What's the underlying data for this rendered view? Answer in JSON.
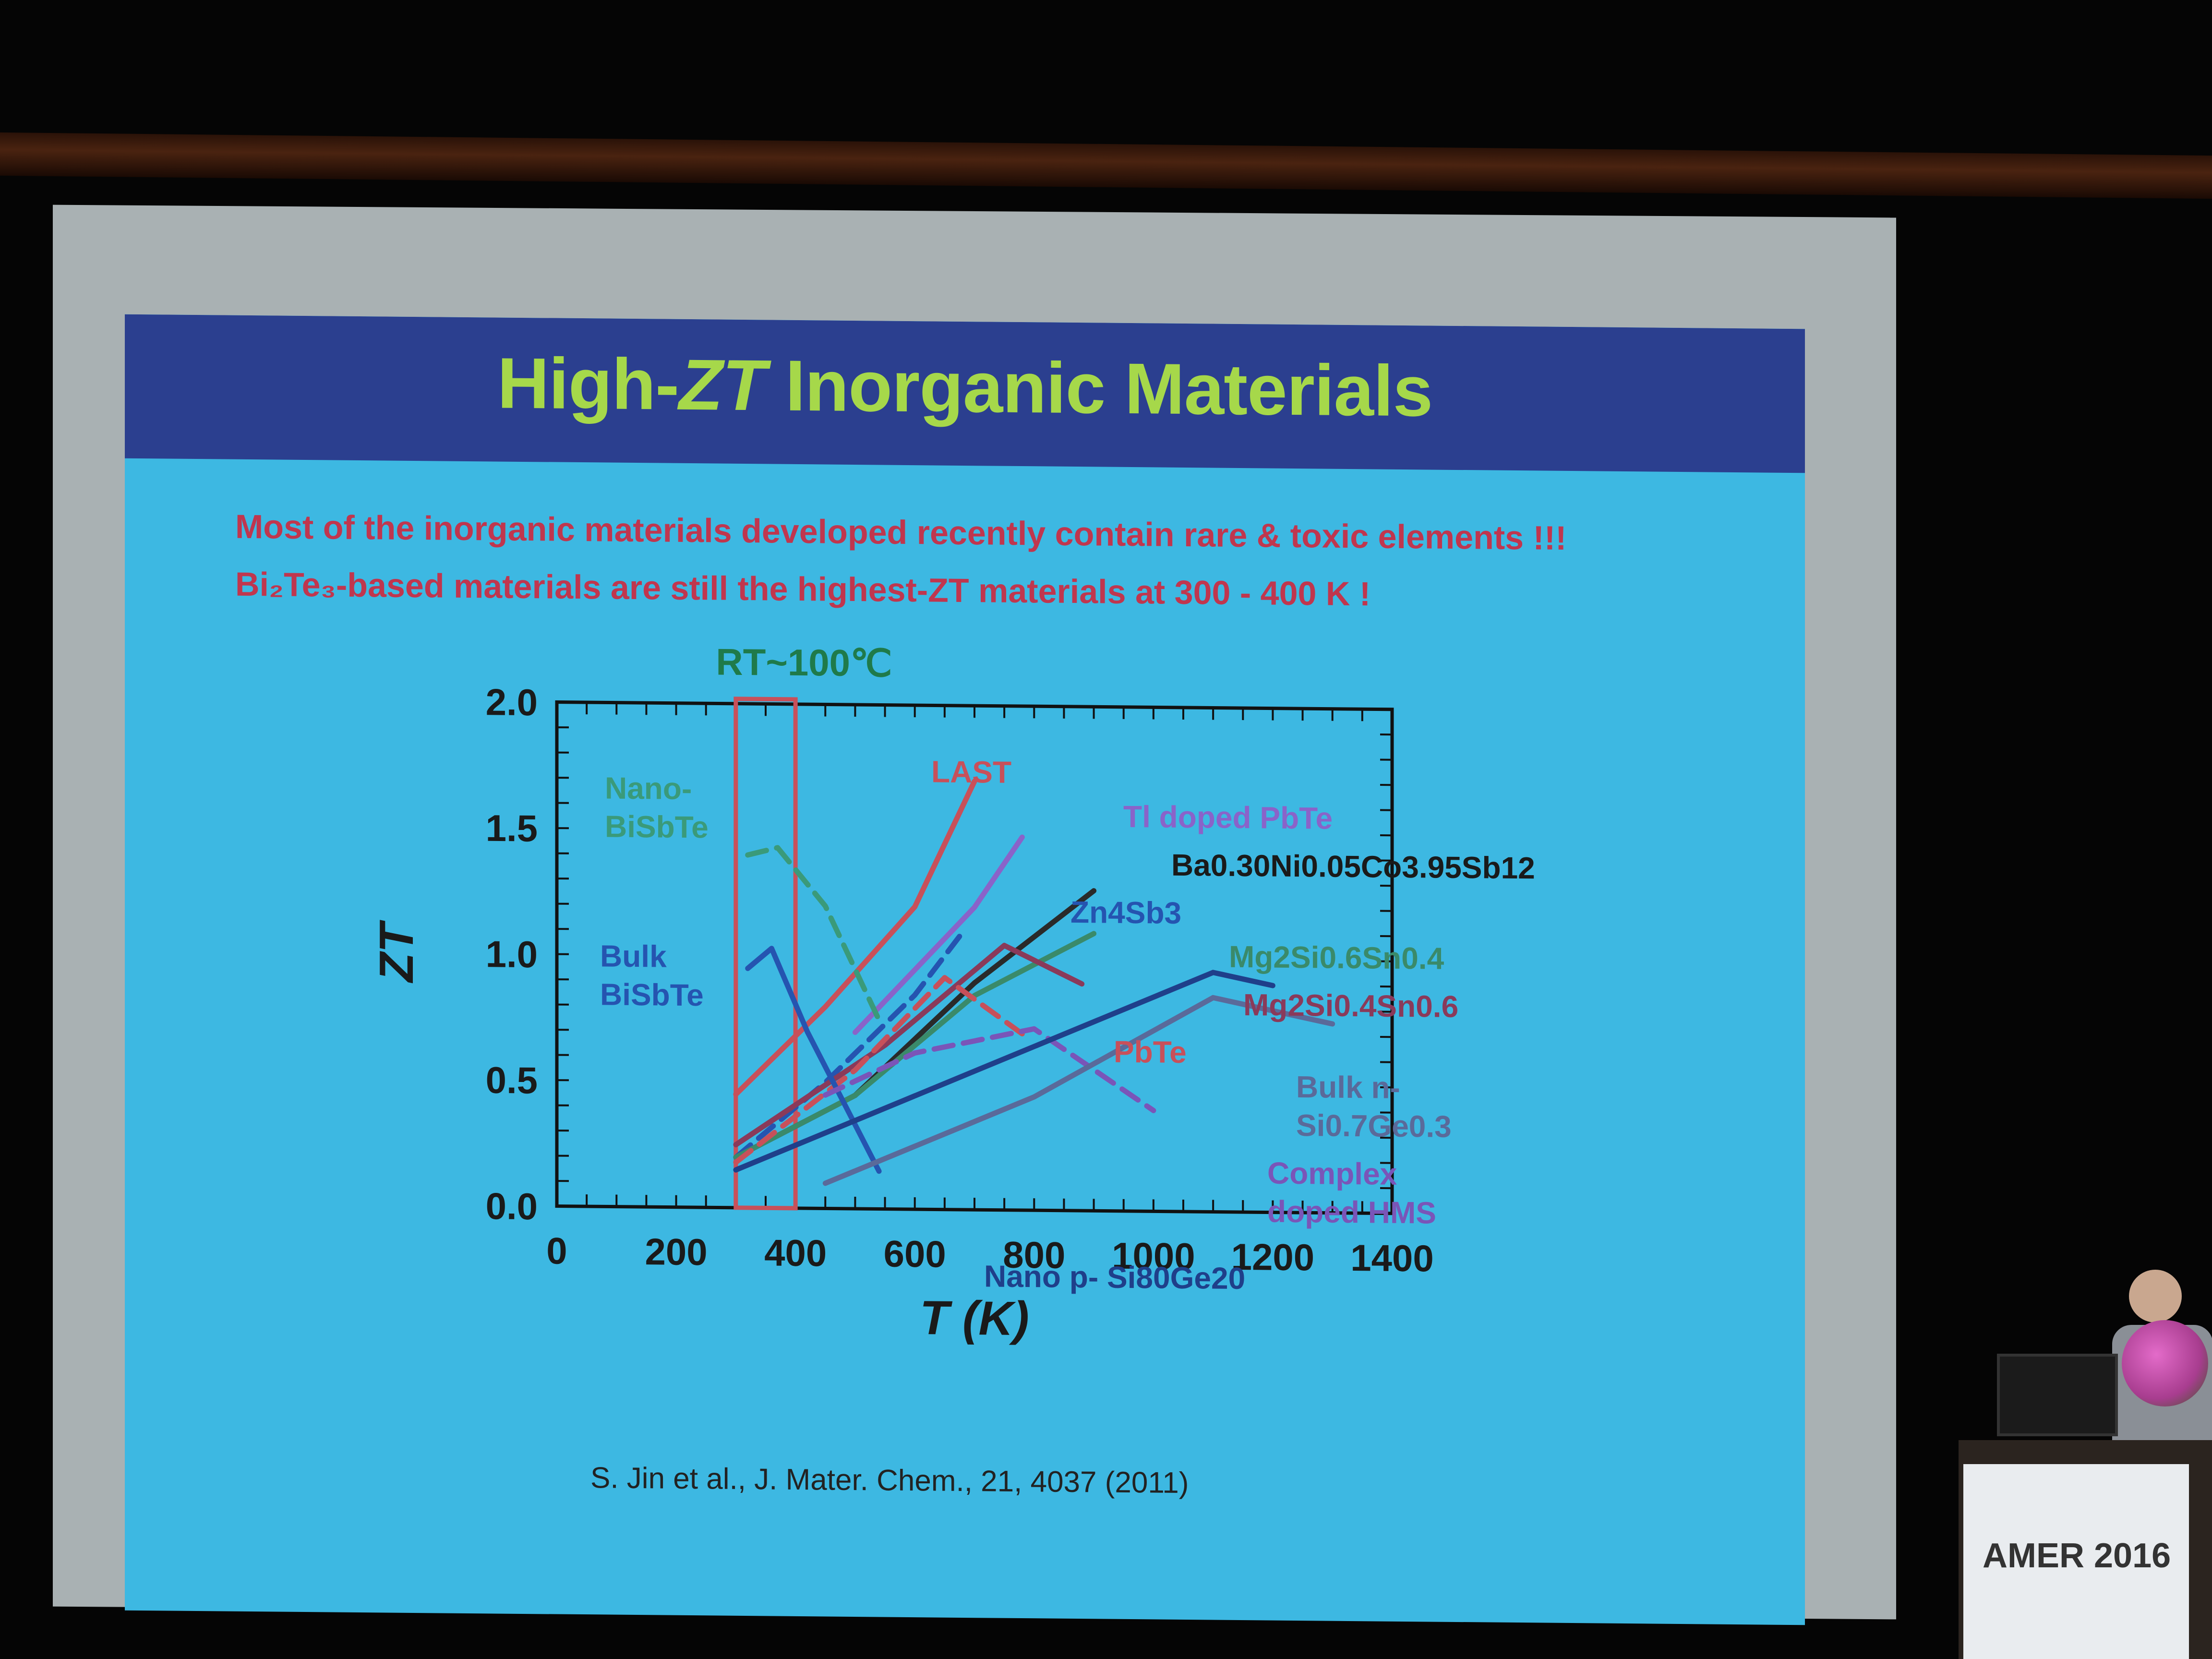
{
  "slide": {
    "title_prefix": "High-",
    "title_italic": "ZT",
    "title_suffix": " Inorganic Materials",
    "line1": "Most of the inorganic materials developed recently contain rare & toxic elements !!!",
    "line2": "Bi₂Te₃-based materials are still the highest-ZT materials at 300 - 400 K !",
    "citation": "S. Jin et al., J. Mater. Chem., 21, 4037 (2011)"
  },
  "podium": {
    "sign": "AMER 2016"
  },
  "colors": {
    "slide_bg": "#3db8e2",
    "banner": "#2b3f8f",
    "title": "#a6d84a",
    "text_red": "#c0364e"
  },
  "chart_data": {
    "type": "line",
    "xlabel": "T (K)",
    "ylabel": "ZT",
    "xlim": [
      0,
      1400
    ],
    "ylim": [
      0,
      2.0
    ],
    "xticks": [
      0,
      200,
      400,
      600,
      800,
      1000,
      1200,
      1400
    ],
    "yticks": [
      0.0,
      0.5,
      1.0,
      1.5,
      2.0
    ],
    "highlight": {
      "label": "RT~100℃",
      "x_range": [
        300,
        400
      ]
    },
    "series": [
      {
        "name": "LAST",
        "color": "#c8505a",
        "dash": false,
        "points": [
          [
            300,
            0.45
          ],
          [
            450,
            0.8
          ],
          [
            600,
            1.2
          ],
          [
            700,
            1.7
          ]
        ]
      },
      {
        "name": "Tl doped PbTe",
        "color": "#8a63c9",
        "dash": false,
        "points": [
          [
            500,
            0.7
          ],
          [
            600,
            0.95
          ],
          [
            700,
            1.2
          ],
          [
            780,
            1.48
          ]
        ]
      },
      {
        "name": "Ba0.30Ni0.05Co3.95Sb12",
        "color": "#2a2a2a",
        "dash": false,
        "points": [
          [
            300,
            0.2
          ],
          [
            500,
            0.45
          ],
          [
            700,
            0.9
          ],
          [
            900,
            1.27
          ]
        ]
      },
      {
        "name": "Zn4Sb3",
        "color": "#2554b0",
        "dash": true,
        "points": [
          [
            300,
            0.2
          ],
          [
            450,
            0.5
          ],
          [
            600,
            0.85
          ],
          [
            680,
            1.1
          ]
        ]
      },
      {
        "name": "Mg2Si0.6Sn0.4",
        "color": "#3a8a6a",
        "dash": false,
        "points": [
          [
            300,
            0.2
          ],
          [
            500,
            0.45
          ],
          [
            700,
            0.85
          ],
          [
            900,
            1.1
          ]
        ]
      },
      {
        "name": "Mg2Si0.4Sn0.6",
        "color": "#8a3a5a",
        "dash": false,
        "points": [
          [
            300,
            0.25
          ],
          [
            550,
            0.65
          ],
          [
            750,
            1.05
          ],
          [
            880,
            0.9
          ]
        ]
      },
      {
        "name": "PbTe",
        "color": "#c8505a",
        "dash": true,
        "points": [
          [
            300,
            0.18
          ],
          [
            500,
            0.55
          ],
          [
            650,
            0.92
          ],
          [
            780,
            0.7
          ]
        ]
      },
      {
        "name": "Nano-BiSbTe",
        "color": "#3a9a7a",
        "dash": true,
        "points": [
          [
            320,
            1.4
          ],
          [
            370,
            1.43
          ],
          [
            450,
            1.2
          ],
          [
            540,
            0.75
          ]
        ]
      },
      {
        "name": "Bulk BiSbTe",
        "color": "#2554b0",
        "dash": false,
        "points": [
          [
            320,
            0.95
          ],
          [
            360,
            1.03
          ],
          [
            420,
            0.7
          ],
          [
            540,
            0.15
          ]
        ]
      },
      {
        "name": "Complex doped HMS",
        "color": "#7a55b8",
        "dash": true,
        "points": [
          [
            450,
            0.45
          ],
          [
            600,
            0.62
          ],
          [
            800,
            0.72
          ],
          [
            1000,
            0.4
          ]
        ]
      },
      {
        "name": "Bulk n-Si0.7Ge0.3",
        "color": "#5a6a9a",
        "dash": false,
        "points": [
          [
            450,
            0.1
          ],
          [
            800,
            0.45
          ],
          [
            1100,
            0.85
          ],
          [
            1300,
            0.75
          ]
        ]
      },
      {
        "name": "Nano p- Si80Ge20",
        "color": "#1f3f8a",
        "dash": false,
        "points": [
          [
            300,
            0.15
          ],
          [
            700,
            0.55
          ],
          [
            1100,
            0.95
          ],
          [
            1200,
            0.9
          ]
        ]
      }
    ],
    "annotations": [
      {
        "text": "LAST"
      },
      {
        "text": "Tl doped PbTe"
      },
      {
        "text": "Ba0.30Ni0.05Co3.95Sb12"
      },
      {
        "text": "Zn4Sb3"
      },
      {
        "text": "Mg2Si0.6Sn0.4"
      },
      {
        "text": "Mg2Si0.4Sn0.6"
      },
      {
        "text": "PbTe"
      },
      {
        "text": "Nano-"
      },
      {
        "text": "BiSbTe"
      },
      {
        "text": "Bulk"
      },
      {
        "text": "BiSbTe"
      },
      {
        "text": "Bulk n-"
      },
      {
        "text": "Si0.7Ge0.3"
      },
      {
        "text": "Complex"
      },
      {
        "text": "doped HMS"
      },
      {
        "text": "Nano p- Si80Ge20"
      }
    ]
  }
}
